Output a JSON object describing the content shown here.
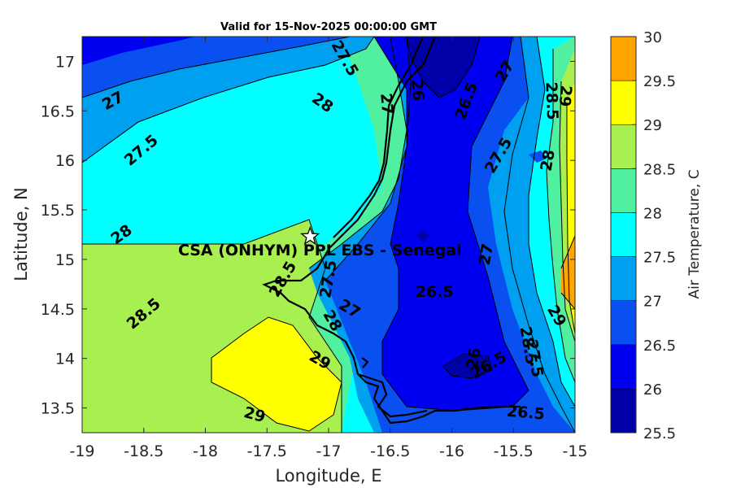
{
  "chart_data": {
    "type": "contour",
    "title": "Valid for 15-Nov-2025 00:00:00 GMT",
    "xlabel": "Longitude, E",
    "ylabel": "Latitude, N",
    "xlim": [
      -19,
      -15
    ],
    "ylim": [
      13.25,
      17.25
    ],
    "xticks": [
      "-19",
      "-18.5",
      "-18",
      "-17.5",
      "-17",
      "-16.5",
      "-16",
      "-15.5",
      "-15"
    ],
    "yticks": [
      "13.5",
      "14",
      "14.5",
      "15",
      "15.5",
      "16",
      "16.5",
      "17"
    ],
    "colorbar": {
      "label": "Air Temperature, C",
      "levels": [
        25.5,
        26,
        26.5,
        27,
        27.5,
        28,
        28.5,
        29,
        29.5,
        30
      ],
      "ticks": [
        "25.5",
        "26",
        "26.5",
        "27",
        "27.5",
        "28",
        "28.5",
        "29",
        "29.5",
        "30"
      ],
      "colors": [
        "#0000a8",
        "#0000f0",
        "#0a50f0",
        "#00a0f0",
        "#00ffff",
        "#50f0a0",
        "#a8f050",
        "#ffff00",
        "#ffa500",
        "#ff5500"
      ]
    },
    "station": {
      "name": "CSA (ONHYM) PPL EBS  - Senegal",
      "lon": -17.15,
      "lat": 15.23
    },
    "contour_labels": [
      {
        "text": "27",
        "lon": -18.75,
        "lat": 16.6,
        "rot": -28
      },
      {
        "text": "27.5",
        "lon": -18.52,
        "lat": 16.1,
        "rot": -40
      },
      {
        "text": "28",
        "lon": -18.68,
        "lat": 15.25,
        "rot": -35
      },
      {
        "text": "28.5",
        "lon": -18.5,
        "lat": 14.45,
        "rot": -40
      },
      {
        "text": "28.5",
        "lon": -17.37,
        "lat": 14.8,
        "rot": -60
      },
      {
        "text": "27.5",
        "lon": -17.0,
        "lat": 14.8,
        "rot": -80
      },
      {
        "text": "28",
        "lon": -16.97,
        "lat": 14.38,
        "rot": 60
      },
      {
        "text": "27",
        "lon": -16.83,
        "lat": 14.5,
        "rot": 30
      },
      {
        "text": "29",
        "lon": -17.07,
        "lat": 13.98,
        "rot": 30
      },
      {
        "text": "29",
        "lon": -17.6,
        "lat": 13.43,
        "rot": 15
      },
      {
        "text": "27.5",
        "lon": -16.87,
        "lat": 17.03,
        "rot": 60
      },
      {
        "text": "28",
        "lon": -17.05,
        "lat": 16.58,
        "rot": 35
      },
      {
        "text": "27",
        "lon": -16.53,
        "lat": 16.57,
        "rot": 85
      },
      {
        "text": "26",
        "lon": -16.28,
        "lat": 16.71,
        "rot": 85
      },
      {
        "text": "26.5",
        "lon": -15.88,
        "lat": 16.6,
        "rot": -70
      },
      {
        "text": "27",
        "lon": -15.57,
        "lat": 16.9,
        "rot": -60
      },
      {
        "text": "28.5",
        "lon": -15.19,
        "lat": 16.6,
        "rot": 88
      },
      {
        "text": "29",
        "lon": -15.08,
        "lat": 16.65,
        "rot": 95
      },
      {
        "text": "27.5",
        "lon": -15.62,
        "lat": 16.05,
        "rot": -60
      },
      {
        "text": "28",
        "lon": -15.22,
        "lat": 16.0,
        "rot": -80
      },
      {
        "text": "27",
        "lon": -15.72,
        "lat": 15.05,
        "rot": -80
      },
      {
        "text": "26.5",
        "lon": -16.14,
        "lat": 14.67,
        "rot": 0
      },
      {
        "text": "26",
        "lon": -15.82,
        "lat": 14.0,
        "rot": -80
      },
      {
        "text": "26.5",
        "lon": -15.7,
        "lat": 13.93,
        "rot": -30
      },
      {
        "text": "28.5",
        "lon": -15.38,
        "lat": 14.13,
        "rot": 80
      },
      {
        "text": "27.5",
        "lon": -15.33,
        "lat": 14.0,
        "rot": 80
      },
      {
        "text": "29",
        "lon": -15.15,
        "lat": 14.43,
        "rot": 60
      },
      {
        "text": "26.5",
        "lon": -15.4,
        "lat": 13.45,
        "rot": 5
      }
    ]
  }
}
